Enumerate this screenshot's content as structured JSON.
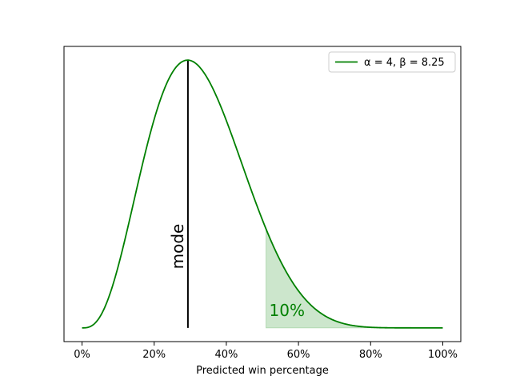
{
  "chart_data": {
    "type": "line",
    "title": "",
    "xlabel": "Predicted win percentage",
    "ylabel": "",
    "xlim": [
      -0.05,
      1.05
    ],
    "ylim": [
      -0.04,
      0.82
    ],
    "x_ticks": [
      0,
      0.2,
      0.4,
      0.6,
      0.8,
      1.0
    ],
    "x_tick_labels": [
      "0%",
      "20%",
      "40%",
      "60%",
      "80%",
      "100%"
    ],
    "y_ticks_visible": false,
    "grid": false,
    "legend_position": "upper-right",
    "series": [
      {
        "name": "α = 4, β = 8.25",
        "color": "#008000",
        "distribution": "beta",
        "alpha": 4,
        "beta": 8.25,
        "x_start": 0,
        "x_end": 1
      }
    ],
    "annotations": [
      {
        "kind": "vertical-line",
        "label": "mode",
        "x": 0.2935,
        "color": "#000000"
      },
      {
        "kind": "shaded-tail",
        "label": "10%",
        "x_start": 0.51,
        "x_end": 1.0,
        "color": "#008000",
        "opacity": 0.2
      }
    ]
  }
}
